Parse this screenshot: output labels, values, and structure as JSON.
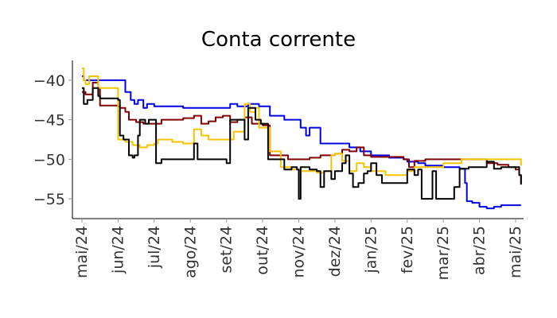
{
  "chart_data": {
    "type": "line",
    "title": "Conta corrente",
    "xlabel": "",
    "ylabel": "",
    "ylim": [
      -57.5,
      -37.5
    ],
    "yticks": [
      -40,
      -45,
      -50,
      -55
    ],
    "xticks": [
      "mai/24",
      "jun/24",
      "jul/24",
      "ago/24",
      "set/24",
      "out/24",
      "nov/24",
      "dez/24",
      "jan/25",
      "fev/25",
      "mar/25",
      "abr/25",
      "mai/25"
    ],
    "grid": false,
    "legend": "none",
    "series": [
      {
        "color": "#0000e6",
        "points": [
          [
            0,
            -39.5
          ],
          [
            0.05,
            -40
          ],
          [
            0.5,
            -40
          ],
          [
            0.8,
            -40
          ],
          [
            1.15,
            -40
          ],
          [
            1.2,
            -41.5
          ],
          [
            1.35,
            -42.5
          ],
          [
            1.45,
            -43
          ],
          [
            1.55,
            -42.5
          ],
          [
            1.7,
            -43.5
          ],
          [
            1.8,
            -43
          ],
          [
            2,
            -43.3
          ],
          [
            2.5,
            -43.3
          ],
          [
            2.8,
            -43.5
          ],
          [
            3.2,
            -43.5
          ],
          [
            3.8,
            -43.5
          ],
          [
            4.1,
            -43
          ],
          [
            4.3,
            -43.3
          ],
          [
            4.6,
            -43
          ],
          [
            4.9,
            -43.3
          ],
          [
            5.2,
            -44.5
          ],
          [
            5.6,
            -45
          ],
          [
            6,
            -45
          ],
          [
            6.05,
            -46
          ],
          [
            6.2,
            -47
          ],
          [
            6.3,
            -46
          ],
          [
            6.5,
            -46
          ],
          [
            6.6,
            -48
          ],
          [
            7,
            -48
          ],
          [
            7.4,
            -48.5
          ],
          [
            7.7,
            -49
          ],
          [
            8,
            -49.5
          ],
          [
            8.5,
            -49.8
          ],
          [
            8.9,
            -50
          ],
          [
            9,
            -50.3
          ],
          [
            9.3,
            -50.5
          ],
          [
            9.5,
            -50.8
          ],
          [
            10,
            -51
          ],
          [
            10.3,
            -51
          ],
          [
            10.45,
            -51.2
          ],
          [
            10.6,
            -53
          ],
          [
            10.65,
            -55.3
          ],
          [
            10.8,
            -55.5
          ],
          [
            11,
            -56
          ],
          [
            11.2,
            -56.2
          ],
          [
            11.4,
            -56
          ],
          [
            11.6,
            -55.8
          ],
          [
            12,
            -55.8
          ],
          [
            12.15,
            -55.8
          ]
        ]
      },
      {
        "color": "#800000",
        "points": [
          [
            0,
            -41.5
          ],
          [
            0.1,
            -41.8
          ],
          [
            0.3,
            -40.3
          ],
          [
            0.45,
            -41
          ],
          [
            0.5,
            -43.2
          ],
          [
            0.8,
            -43.2
          ],
          [
            1,
            -43.3
          ],
          [
            1.05,
            -43.5
          ],
          [
            1.2,
            -44
          ],
          [
            1.3,
            -45
          ],
          [
            1.5,
            -45.3
          ],
          [
            1.7,
            -45.5
          ],
          [
            2,
            -45.5
          ],
          [
            2.2,
            -45
          ],
          [
            2.5,
            -45
          ],
          [
            2.8,
            -44.8
          ],
          [
            3.1,
            -44.5
          ],
          [
            3.3,
            -45.5
          ],
          [
            3.5,
            -45.2
          ],
          [
            3.7,
            -44.7
          ],
          [
            3.9,
            -44.5
          ],
          [
            4.1,
            -45.3
          ],
          [
            4.3,
            -45
          ],
          [
            4.5,
            -44.7
          ],
          [
            4.7,
            -45.5
          ],
          [
            4.9,
            -45.5
          ],
          [
            5,
            -45.7
          ],
          [
            5.2,
            -49.5
          ],
          [
            5.5,
            -49.5
          ],
          [
            5.7,
            -50
          ],
          [
            6,
            -50
          ],
          [
            6.3,
            -49.8
          ],
          [
            6.6,
            -49.5
          ],
          [
            7,
            -49.3
          ],
          [
            7.2,
            -48.8
          ],
          [
            7.4,
            -49
          ],
          [
            7.6,
            -48.5
          ],
          [
            7.8,
            -49.5
          ],
          [
            8,
            -49.7
          ],
          [
            8.5,
            -49.7
          ],
          [
            8.9,
            -50
          ],
          [
            9.05,
            -51
          ],
          [
            9.2,
            -50.2
          ],
          [
            9.5,
            -50
          ],
          [
            10,
            -50
          ],
          [
            10.5,
            -50
          ],
          [
            11,
            -50
          ],
          [
            11.2,
            -50.5
          ],
          [
            11.5,
            -50.7
          ],
          [
            11.8,
            -51
          ],
          [
            12,
            -51.3
          ],
          [
            12.1,
            -52
          ],
          [
            12.15,
            -53
          ]
        ]
      },
      {
        "color": "#f5c400",
        "points": [
          [
            0,
            -38.5
          ],
          [
            0.05,
            -40
          ],
          [
            0.1,
            -40.5
          ],
          [
            0.2,
            -39.5
          ],
          [
            0.4,
            -39.5
          ],
          [
            0.45,
            -41
          ],
          [
            0.6,
            -41
          ],
          [
            0.95,
            -41
          ],
          [
            1,
            -47.5
          ],
          [
            1.2,
            -47.8
          ],
          [
            1.4,
            -48.2
          ],
          [
            1.6,
            -48.5
          ],
          [
            1.8,
            -48.2
          ],
          [
            2,
            -48
          ],
          [
            2.1,
            -47.5
          ],
          [
            2.3,
            -47.5
          ],
          [
            2.5,
            -47.8
          ],
          [
            2.8,
            -48
          ],
          [
            3,
            -48
          ],
          [
            3.1,
            -46.2
          ],
          [
            3.3,
            -47
          ],
          [
            3.5,
            -47.5
          ],
          [
            3.8,
            -47.5
          ],
          [
            4,
            -47.5
          ],
          [
            4.2,
            -46.5
          ],
          [
            4.4,
            -46.5
          ],
          [
            4.5,
            -43
          ],
          [
            4.65,
            -44
          ],
          [
            4.8,
            -43.5
          ],
          [
            4.9,
            -46
          ],
          [
            5,
            -46
          ],
          [
            5.2,
            -49
          ],
          [
            5.35,
            -49
          ],
          [
            5.5,
            -51
          ],
          [
            5.8,
            -51.3
          ],
          [
            6,
            -51.5
          ],
          [
            6.2,
            -51.5
          ],
          [
            6.5,
            -51.7
          ],
          [
            6.7,
            -51.5
          ],
          [
            6.9,
            -49.5
          ],
          [
            7,
            -49.3
          ],
          [
            7.2,
            -50.2
          ],
          [
            7.4,
            -51.5
          ],
          [
            7.6,
            -50.5
          ],
          [
            7.8,
            -51
          ],
          [
            8,
            -51.5
          ],
          [
            8.4,
            -52
          ],
          [
            8.8,
            -52
          ],
          [
            9,
            -51.5
          ],
          [
            9.2,
            -51
          ],
          [
            9.5,
            -51
          ],
          [
            9.8,
            -51
          ],
          [
            10,
            -50.5
          ],
          [
            10.5,
            -50
          ],
          [
            11,
            -50
          ],
          [
            11.5,
            -50
          ],
          [
            12,
            -50
          ],
          [
            12.1,
            -50
          ],
          [
            12.15,
            -50.8
          ]
        ]
      },
      {
        "color": "#000000",
        "points": [
          [
            0,
            -41
          ],
          [
            0.05,
            -43
          ],
          [
            0.15,
            -42.5
          ],
          [
            0.3,
            -41
          ],
          [
            0.45,
            -42
          ],
          [
            0.5,
            -42.3
          ],
          [
            0.8,
            -42.3
          ],
          [
            1,
            -42.5
          ],
          [
            1.05,
            -47
          ],
          [
            1.15,
            -47.5
          ],
          [
            1.3,
            -49.5
          ],
          [
            1.4,
            -49.8
          ],
          [
            1.45,
            -49.5
          ],
          [
            1.55,
            -47
          ],
          [
            1.6,
            -45
          ],
          [
            1.75,
            -45.5
          ],
          [
            1.85,
            -45
          ],
          [
            2,
            -45
          ],
          [
            2.05,
            -50.5
          ],
          [
            2.2,
            -50
          ],
          [
            2.6,
            -50
          ],
          [
            3,
            -50
          ],
          [
            3.1,
            -48
          ],
          [
            3.2,
            -50
          ],
          [
            3.5,
            -50
          ],
          [
            3.9,
            -50
          ],
          [
            4,
            -50.5
          ],
          [
            4.1,
            -45
          ],
          [
            4.4,
            -45
          ],
          [
            4.5,
            -47.5
          ],
          [
            4.6,
            -43.5
          ],
          [
            4.8,
            -45
          ],
          [
            4.95,
            -45.5
          ],
          [
            5,
            -45.5
          ],
          [
            5.15,
            -50
          ],
          [
            5.4,
            -50
          ],
          [
            5.6,
            -51.3
          ],
          [
            5.8,
            -51
          ],
          [
            5.95,
            -51.3
          ],
          [
            6,
            -55
          ],
          [
            6.05,
            -51
          ],
          [
            6.3,
            -51.3
          ],
          [
            6.5,
            -51.5
          ],
          [
            6.6,
            -53.5
          ],
          [
            6.7,
            -51.5
          ],
          [
            6.9,
            -52.5
          ],
          [
            7,
            -51.5
          ],
          [
            7.2,
            -50.5
          ],
          [
            7.3,
            -49.5
          ],
          [
            7.4,
            -51.8
          ],
          [
            7.5,
            -53.5
          ],
          [
            7.65,
            -53
          ],
          [
            7.8,
            -51.8
          ],
          [
            7.9,
            -51.5
          ],
          [
            8,
            -50.5
          ],
          [
            8.15,
            -52
          ],
          [
            8.3,
            -53
          ],
          [
            8.6,
            -53
          ],
          [
            8.9,
            -53
          ],
          [
            9,
            -51.3
          ],
          [
            9.2,
            -52
          ],
          [
            9.3,
            -51.3
          ],
          [
            9.4,
            -55
          ],
          [
            9.5,
            -55
          ],
          [
            9.65,
            -55
          ],
          [
            9.7,
            -51.5
          ],
          [
            9.8,
            -55
          ],
          [
            10,
            -55
          ],
          [
            10.15,
            -55
          ],
          [
            10.3,
            -53.5
          ],
          [
            10.45,
            -51.2
          ],
          [
            10.55,
            -51.2
          ],
          [
            10.7,
            -51
          ],
          [
            11,
            -51
          ],
          [
            11.2,
            -50.3
          ],
          [
            11.4,
            -51.2
          ],
          [
            11.6,
            -51
          ],
          [
            12,
            -51
          ],
          [
            12.1,
            -52
          ],
          [
            12.15,
            -53.2
          ]
        ]
      }
    ]
  }
}
